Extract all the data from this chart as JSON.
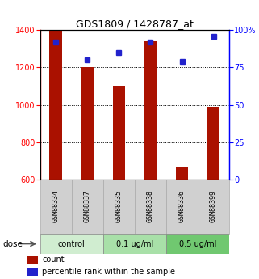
{
  "title": "GDS1809 / 1428787_at",
  "samples": [
    "GSM88334",
    "GSM88337",
    "GSM88335",
    "GSM88338",
    "GSM88336",
    "GSM88399"
  ],
  "counts": [
    1400,
    1200,
    1100,
    1340,
    670,
    990
  ],
  "percentile_ranks": [
    92,
    80,
    85,
    92,
    79,
    96
  ],
  "groups": [
    {
      "label": "control",
      "indices": [
        0,
        1
      ],
      "color": "#d0edd0"
    },
    {
      "label": "0.1 ug/ml",
      "indices": [
        2,
        3
      ],
      "color": "#a8e0a8"
    },
    {
      "label": "0.5 ug/ml",
      "indices": [
        4,
        5
      ],
      "color": "#70c870"
    }
  ],
  "dose_label": "dose",
  "bar_color": "#aa1100",
  "dot_color": "#2222cc",
  "ylim_left": [
    600,
    1400
  ],
  "ylim_right": [
    0,
    100
  ],
  "yticks_left": [
    600,
    800,
    1000,
    1200,
    1400
  ],
  "yticks_right": [
    0,
    25,
    50,
    75,
    100
  ],
  "ytick_labels_right": [
    "0",
    "25",
    "50",
    "75",
    "100%"
  ],
  "grid_values": [
    800,
    1000,
    1200
  ],
  "legend_count_label": "count",
  "legend_pct_label": "percentile rank within the sample",
  "bar_width": 0.4,
  "sample_bg_color": "#d0d0d0",
  "sample_bg_edge": "#aaaaaa",
  "bg_color": "#ffffff"
}
